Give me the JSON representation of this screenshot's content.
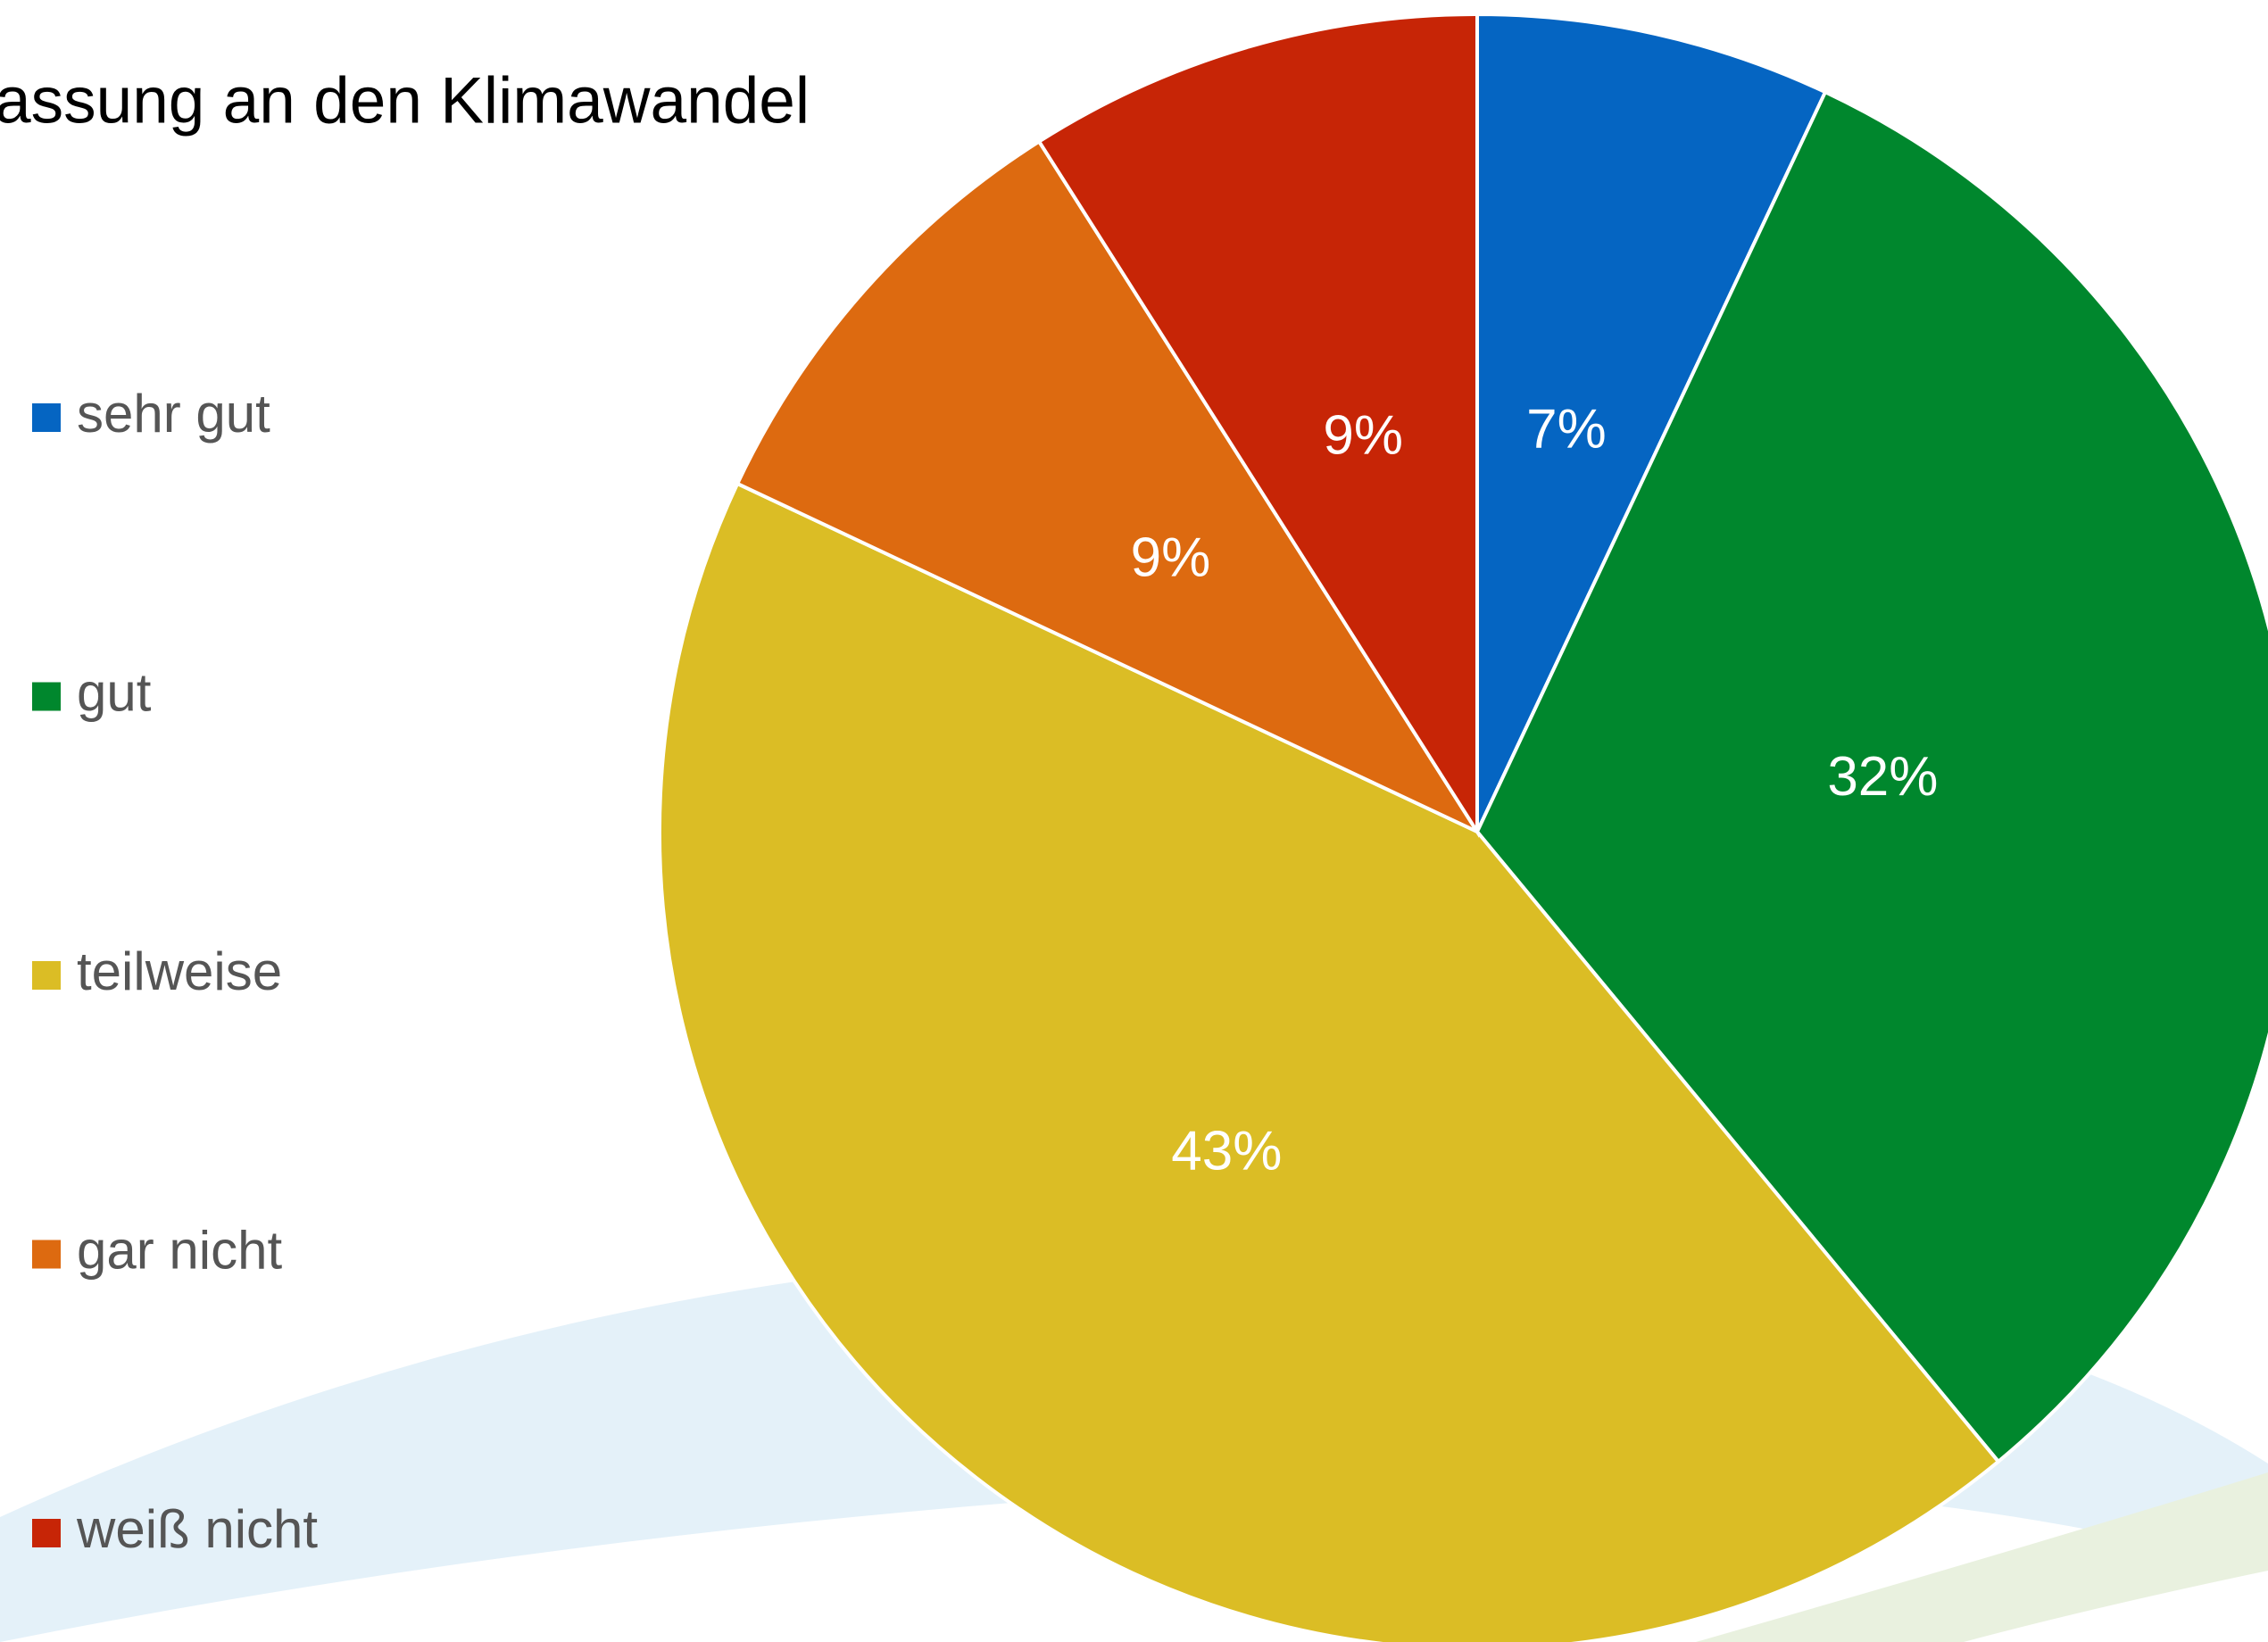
{
  "chart_data": {
    "type": "pie",
    "title": "assung an den Klimawandel",
    "categories": [
      "sehr gut",
      "gut",
      "teilweise",
      "gar nicht",
      "weiß nicht"
    ],
    "values": [
      7,
      32,
      43,
      9,
      9
    ],
    "value_labels": [
      "7%",
      "32%",
      "43%",
      "9%",
      "9%"
    ],
    "colors": [
      "#0565c2",
      "#00872d",
      "#dbbd25",
      "#dd6a10",
      "#c72506"
    ],
    "legend": "left"
  }
}
